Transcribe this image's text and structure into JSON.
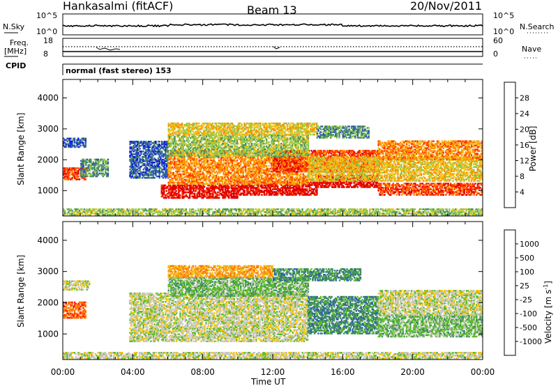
{
  "header": {
    "station": "Hankasalmi (fitACF)",
    "beam": "Beam 13",
    "date": "20/Nov/2011"
  },
  "panels": {
    "nsky": {
      "label": "N.Sky",
      "ticks": [
        "10^5",
        "10^0"
      ]
    },
    "nsearch": {
      "label": "N.Search",
      "ticks": [
        "10^5",
        "10^0"
      ]
    },
    "freq": {
      "label_top": "Freq.",
      "label_bottom": "[MHz]",
      "ticks": [
        "18",
        "8"
      ]
    },
    "nave": {
      "label": "Nave",
      "ticks": [
        "60",
        "0"
      ]
    },
    "cpid": {
      "label": "CPID",
      "value": "normal (fast stereo) 153"
    }
  },
  "power_colorbar": {
    "title": "Power [dB]",
    "ticks": [
      "28",
      "24",
      "20",
      "16",
      "12",
      "8",
      "4"
    ]
  },
  "velocity_colorbar": {
    "title_text": "Velocity [m s",
    "title_sup": "-1",
    "title_end": "]",
    "ticks": [
      "1000",
      "500",
      "100",
      "25",
      "-25",
      "-100",
      "-500",
      "-1000"
    ]
  },
  "colors": {
    "power": [
      "#0a10e8",
      "#2d55b5",
      "#4a8f64",
      "#92c84b",
      "#f2c21a",
      "#ff8a00",
      "#ff3a00",
      "#e00000"
    ],
    "velocity": [
      "#1b39b8",
      "#3060a8",
      "#3f8c68",
      "#5fbb2e",
      "#c8c8be",
      "#f6c300",
      "#f5a020",
      "#ff7000",
      "#ff1800"
    ]
  },
  "chart_data": [
    {
      "type": "heatmap",
      "ylabel": "Slant Range [km]",
      "xlabel": "Time UT",
      "x_ticks": [
        "00:00",
        "04:00",
        "08:00",
        "12:00",
        "16:00",
        "20:00",
        "00:00"
      ],
      "y_ticks": [
        "1000",
        "2000",
        "3000",
        "4000"
      ],
      "ylim": [
        180,
        4600
      ],
      "xlim_hours": [
        0,
        24
      ],
      "quantity": "Power [dB]",
      "value_range": [
        0,
        32
      ],
      "bands": [
        {
          "t_start": 0,
          "t_end": 1.3,
          "r_low": 1350,
          "r_high": 1750,
          "level": 6
        },
        {
          "t_start": 1.0,
          "t_end": 2.6,
          "r_low": 1450,
          "r_high": 2000,
          "level": 2
        },
        {
          "t_start": 0,
          "t_end": 1.3,
          "r_low": 2400,
          "r_high": 2700,
          "level": 1
        },
        {
          "t_start": 3.8,
          "t_end": 6.0,
          "r_low": 1400,
          "r_high": 2600,
          "level": 1
        },
        {
          "t_start": 5.6,
          "t_end": 10.0,
          "r_low": 750,
          "r_high": 1200,
          "level": 7
        },
        {
          "t_start": 10.0,
          "t_end": 14.5,
          "r_low": 850,
          "r_high": 1300,
          "level": 7
        },
        {
          "t_start": 14.5,
          "t_end": 18.0,
          "r_low": 1100,
          "r_high": 1500,
          "level": 7
        },
        {
          "t_start": 18.0,
          "t_end": 24.0,
          "r_low": 850,
          "r_high": 1250,
          "level": 6
        },
        {
          "t_start": 6.0,
          "t_end": 14.0,
          "r_low": 1200,
          "r_high": 2300,
          "level": 5
        },
        {
          "t_start": 12.0,
          "t_end": 18.0,
          "r_low": 1600,
          "r_high": 2300,
          "level": 6
        },
        {
          "t_start": 14.0,
          "t_end": 24.0,
          "r_low": 1300,
          "r_high": 2100,
          "level": 4
        },
        {
          "t_start": 18.0,
          "t_end": 24.0,
          "r_low": 2000,
          "r_high": 2600,
          "level": 5
        },
        {
          "t_start": 6.0,
          "t_end": 14.0,
          "r_low": 2100,
          "r_high": 2800,
          "level": 3
        },
        {
          "t_start": 6.0,
          "t_end": 14.5,
          "r_low": 2800,
          "r_high": 3200,
          "level": 4
        },
        {
          "t_start": 14.5,
          "t_end": 17.5,
          "r_low": 2700,
          "r_high": 3100,
          "level": 2
        },
        {
          "t_start": 0,
          "t_end": 24.0,
          "r_low": 200,
          "r_high": 400,
          "level": 3
        }
      ]
    },
    {
      "type": "heatmap",
      "ylabel": "Slant Range [km]",
      "xlabel": "Time UT",
      "x_ticks": [
        "00:00",
        "04:00",
        "08:00",
        "12:00",
        "16:00",
        "20:00",
        "00:00"
      ],
      "y_ticks": [
        "1000",
        "2000",
        "3000",
        "4000"
      ],
      "ylim": [
        180,
        4600
      ],
      "xlim_hours": [
        0,
        24
      ],
      "quantity": "Velocity [m s-1]",
      "bands": [
        {
          "t_start": 0,
          "t_end": 1.3,
          "r_low": 1500,
          "r_high": 2000,
          "level": 7
        },
        {
          "t_start": 0,
          "t_end": 1.5,
          "r_low": 2400,
          "r_high": 2700,
          "level": 4
        },
        {
          "t_start": 3.8,
          "t_end": 14.0,
          "r_low": 750,
          "r_high": 2300,
          "level": 4
        },
        {
          "t_start": 14.0,
          "t_end": 18.0,
          "r_low": 1000,
          "r_high": 2200,
          "level": 2
        },
        {
          "t_start": 18.0,
          "t_end": 24.0,
          "r_low": 900,
          "r_high": 1600,
          "level": 3
        },
        {
          "t_start": 18.0,
          "t_end": 24.0,
          "r_low": 1600,
          "r_high": 2400,
          "level": 4
        },
        {
          "t_start": 6.0,
          "t_end": 14.0,
          "r_low": 2200,
          "r_high": 2800,
          "level": 3
        },
        {
          "t_start": 6.0,
          "t_end": 12.0,
          "r_low": 2800,
          "r_high": 3200,
          "level": 6
        },
        {
          "t_start": 12.0,
          "t_end": 17.0,
          "r_low": 2700,
          "r_high": 3100,
          "level": 2
        },
        {
          "t_start": 0,
          "t_end": 24.0,
          "r_low": 200,
          "r_high": 400,
          "level": 4
        }
      ]
    }
  ]
}
